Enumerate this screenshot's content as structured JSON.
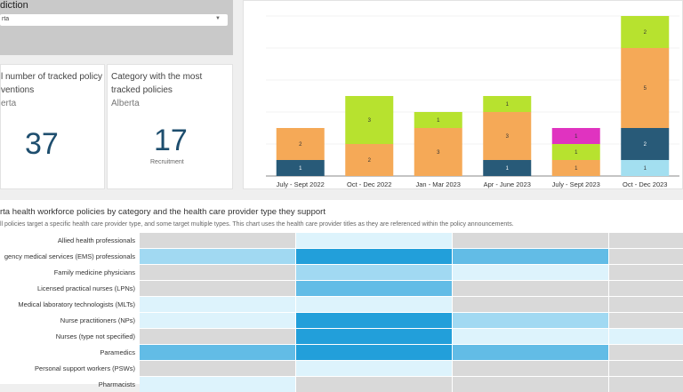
{
  "filter": {
    "label": "diction",
    "value": "rta"
  },
  "cards": [
    {
      "title_line1": "l number of tracked policy",
      "title_line2": "ventions",
      "subtitle": "erta",
      "value": "37"
    },
    {
      "title": "Category with the most tracked policies",
      "subtitle": "Alberta",
      "value": "17",
      "value_label": "Recruitment"
    }
  ],
  "chart_data": {
    "type": "bar",
    "stacked": true,
    "categories": [
      "July - Sept 2022",
      "Oct - Dec 2022",
      "Jan - Mar 2023",
      "Apr - June 2023",
      "July - Sept 2023",
      "Oct - Dec 2023"
    ],
    "series": [
      {
        "color": "#a3dff0",
        "values": [
          0,
          0,
          0,
          0,
          0,
          1
        ]
      },
      {
        "color": "#285a78",
        "values": [
          1,
          0,
          0,
          1,
          0,
          2
        ]
      },
      {
        "color": "#f5a957",
        "values": [
          2,
          2,
          3,
          3,
          1,
          5
        ]
      },
      {
        "color": "#b7e22f",
        "values": [
          0,
          3,
          1,
          1,
          1,
          2
        ]
      },
      {
        "color": "#e033c0",
        "values": [
          0,
          0,
          0,
          0,
          1,
          0
        ]
      }
    ],
    "ylim": [
      0,
      10
    ],
    "grid": true
  },
  "heatmap": {
    "title": "rta health workforce policies by category and the health care provider type they support",
    "description": "ll policies target a specific health care provider type, and some target multiple types. This chart uses the health care provider titles as they are referenced within the policy announcements.",
    "palette": {
      "none": "#d9d9d9",
      "v1": "#ddf3fc",
      "v2": "#a1d9f2",
      "v3": "#62bce6",
      "v4": "#229fda"
    },
    "rows": [
      {
        "label": "Allied health professionals",
        "cells": [
          "none",
          "v1",
          "none",
          "none"
        ]
      },
      {
        "label": "gency medical services (EMS) professionals",
        "cells": [
          "v2",
          "v4",
          "v3",
          "none"
        ]
      },
      {
        "label": "Family medicine physicians",
        "cells": [
          "none",
          "v2",
          "v1",
          "none"
        ]
      },
      {
        "label": "Licensed practical nurses (LPNs)",
        "cells": [
          "none",
          "v3",
          "none",
          "none"
        ]
      },
      {
        "label": "Medical laboratory technologists (MLTs)",
        "cells": [
          "v1",
          "v1",
          "none",
          "none"
        ]
      },
      {
        "label": "Nurse practitioners (NPs)",
        "cells": [
          "v1",
          "v4",
          "v2",
          "none"
        ]
      },
      {
        "label": "Nurses (type not specified)",
        "cells": [
          "none",
          "v4",
          "v1",
          "v1"
        ]
      },
      {
        "label": "Paramedics",
        "cells": [
          "v3",
          "v4",
          "v3",
          "none"
        ]
      },
      {
        "label": "Personal support workers (PSWs)",
        "cells": [
          "none",
          "v1",
          "none",
          "none"
        ]
      },
      {
        "label": "Pharmacists",
        "cells": [
          "v1",
          "none",
          "none",
          "none"
        ]
      }
    ]
  }
}
